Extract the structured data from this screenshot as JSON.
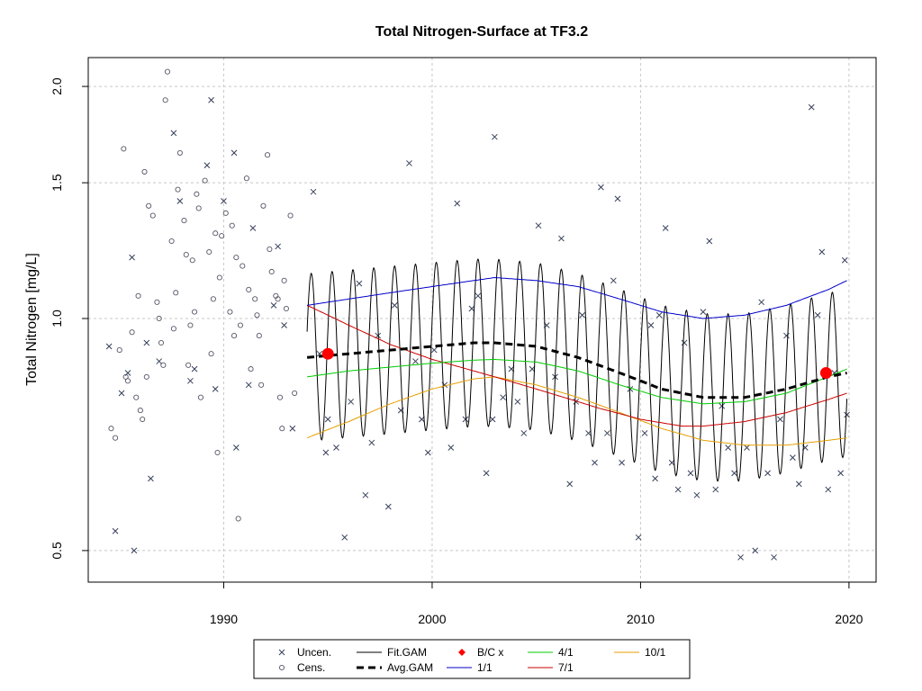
{
  "chart_data": {
    "type": "scatter",
    "title": "Total Nitrogen-Surface at TF3.2",
    "xlabel": "",
    "ylabel": "Total Nitrogen [mg/L]",
    "y_scale": "log",
    "xlim": [
      1983.5,
      2021.3
    ],
    "ylim": [
      0.455,
      2.18
    ],
    "x_ticks": [
      1990,
      2000,
      2010,
      2020
    ],
    "x_tick_labels": [
      "1990",
      "2000",
      "2010",
      "2020"
    ],
    "y_ticks": [
      0.5,
      1.0,
      1.5,
      2.0
    ],
    "y_tick_labels": [
      "0.5",
      "1.0",
      "1.5",
      "2.0"
    ],
    "grid": true,
    "legend_position": "bottom-center",
    "colors": {
      "uncen": "#36405a",
      "cens": "#555566",
      "fit_gam": "#000000",
      "avg_gam": "#000000",
      "bc": "#ff0000",
      "one_one": "#0000cc",
      "four_one": "#00cc00",
      "seven_one": "#cc0000",
      "ten_one": "#e69f00"
    },
    "legend": [
      {
        "label": "Uncen.",
        "symbol": "x"
      },
      {
        "label": "Fit.GAM",
        "symbol": "line"
      },
      {
        "label": "B/C x",
        "symbol": "diamond"
      },
      {
        "label": "4/1",
        "symbol": "line"
      },
      {
        "label": "10/1",
        "symbol": "line"
      },
      {
        "label": "Cens.",
        "symbol": "circle"
      },
      {
        "label": "Avg.GAM",
        "symbol": "dashed"
      },
      {
        "label": "1/1",
        "symbol": "line"
      },
      {
        "label": "7/1",
        "symbol": "line"
      }
    ],
    "censored_points": [
      [
        1984.6,
        0.72
      ],
      [
        1984.8,
        0.7
      ],
      [
        1985.0,
        0.91
      ],
      [
        1985.2,
        1.66
      ],
      [
        1985.4,
        0.83
      ],
      [
        1985.6,
        0.96
      ],
      [
        1985.8,
        0.79
      ],
      [
        1986.0,
        0.76
      ],
      [
        1986.2,
        1.55
      ],
      [
        1986.4,
        1.4
      ],
      [
        1986.6,
        1.36
      ],
      [
        1986.8,
        1.05
      ],
      [
        1987.0,
        0.93
      ],
      [
        1987.2,
        1.92
      ],
      [
        1987.3,
        2.09
      ],
      [
        1987.5,
        1.26
      ],
      [
        1987.7,
        1.08
      ],
      [
        1987.9,
        1.64
      ],
      [
        1988.1,
        1.34
      ],
      [
        1988.3,
        0.87
      ],
      [
        1988.5,
        1.19
      ],
      [
        1988.7,
        1.45
      ],
      [
        1988.9,
        0.79
      ],
      [
        1989.1,
        1.51
      ],
      [
        1989.3,
        1.22
      ],
      [
        1989.5,
        1.06
      ],
      [
        1989.7,
        0.67
      ],
      [
        1989.9,
        1.28
      ],
      [
        1990.1,
        1.37
      ],
      [
        1990.3,
        1.02
      ],
      [
        1990.5,
        0.95
      ],
      [
        1990.7,
        0.55
      ],
      [
        1990.9,
        1.17
      ],
      [
        1991.1,
        1.52
      ],
      [
        1991.3,
        0.86
      ],
      [
        1991.5,
        1.06
      ],
      [
        1991.7,
        0.95
      ],
      [
        1991.9,
        1.4
      ],
      [
        1992.1,
        1.63
      ],
      [
        1992.3,
        1.15
      ],
      [
        1992.5,
        1.07
      ],
      [
        1992.7,
        0.79
      ],
      [
        1992.9,
        1.12
      ],
      [
        1993.2,
        1.36
      ],
      [
        1993.4,
        0.8
      ],
      [
        1985.9,
        1.07
      ],
      [
        1986.3,
        0.84
      ],
      [
        1986.9,
        1.0
      ],
      [
        1987.6,
        0.97
      ],
      [
        1988.2,
        1.21
      ],
      [
        1988.8,
        1.39
      ],
      [
        1989.6,
        1.29
      ],
      [
        1990.6,
        1.2
      ],
      [
        1991.6,
        1.01
      ],
      [
        1992.6,
        1.06
      ],
      [
        1987.1,
        0.87
      ],
      [
        1988.4,
        0.98
      ],
      [
        1989.4,
        0.9
      ],
      [
        1990.8,
        0.98
      ],
      [
        1991.8,
        0.82
      ],
      [
        1992.8,
        0.72
      ],
      [
        1985.3,
        0.84
      ],
      [
        1986.1,
        0.74
      ],
      [
        1987.8,
        1.47
      ],
      [
        1988.6,
        1.02
      ],
      [
        1989.8,
        1.13
      ],
      [
        1990.4,
        1.32
      ],
      [
        1991.2,
        1.09
      ],
      [
        1992.2,
        1.23
      ],
      [
        1993.0,
        1.03
      ]
    ],
    "uncensored_points": [
      [
        1984.5,
        0.92
      ],
      [
        1984.8,
        0.53
      ],
      [
        1985.1,
        0.8
      ],
      [
        1985.4,
        0.85
      ],
      [
        1985.6,
        1.2
      ],
      [
        1985.7,
        0.5
      ],
      [
        1986.3,
        0.93
      ],
      [
        1986.5,
        0.62
      ],
      [
        1986.9,
        0.88
      ],
      [
        1987.6,
        1.74
      ],
      [
        1987.9,
        1.42
      ],
      [
        1988.4,
        0.83
      ],
      [
        1988.6,
        0.86
      ],
      [
        1989.2,
        1.58
      ],
      [
        1989.4,
        1.92
      ],
      [
        1989.6,
        0.81
      ],
      [
        1990.0,
        1.42
      ],
      [
        1990.5,
        1.64
      ],
      [
        1990.6,
        0.68
      ],
      [
        1991.2,
        0.82
      ],
      [
        1991.4,
        1.31
      ],
      [
        1992.4,
        1.04
      ],
      [
        1992.6,
        1.24
      ],
      [
        1992.9,
        0.98
      ],
      [
        1993.3,
        0.72
      ],
      [
        1994.3,
        1.46
      ],
      [
        1994.6,
        0.9
      ],
      [
        1994.9,
        0.67
      ],
      [
        1995.0,
        0.74
      ],
      [
        1995.4,
        0.68
      ],
      [
        1995.8,
        0.52
      ],
      [
        1996.1,
        0.78
      ],
      [
        1996.5,
        1.11
      ],
      [
        1996.8,
        0.59
      ],
      [
        1997.1,
        0.69
      ],
      [
        1997.4,
        0.95
      ],
      [
        1997.9,
        0.57
      ],
      [
        1998.2,
        1.04
      ],
      [
        1998.5,
        0.76
      ],
      [
        1998.9,
        1.59
      ],
      [
        1999.2,
        0.88
      ],
      [
        1999.5,
        0.74
      ],
      [
        1999.8,
        0.67
      ],
      [
        2000.1,
        0.91
      ],
      [
        2000.6,
        0.82
      ],
      [
        2000.9,
        0.68
      ],
      [
        2001.2,
        1.41
      ],
      [
        2001.6,
        0.74
      ],
      [
        2001.9,
        1.03
      ],
      [
        2002.2,
        1.07
      ],
      [
        2002.6,
        0.63
      ],
      [
        2002.9,
        0.74
      ],
      [
        2003.0,
        1.72
      ],
      [
        2003.4,
        0.79
      ],
      [
        2003.8,
        0.86
      ],
      [
        2004.1,
        0.78
      ],
      [
        2004.4,
        0.71
      ],
      [
        2004.8,
        0.86
      ],
      [
        2005.1,
        1.32
      ],
      [
        2005.5,
        0.98
      ],
      [
        2005.9,
        0.84
      ],
      [
        2006.2,
        1.27
      ],
      [
        2006.6,
        0.61
      ],
      [
        2006.9,
        0.78
      ],
      [
        2007.2,
        1.01
      ],
      [
        2007.5,
        0.71
      ],
      [
        2007.8,
        0.65
      ],
      [
        2008.1,
        1.48
      ],
      [
        2008.4,
        0.71
      ],
      [
        2008.7,
        1.12
      ],
      [
        2008.9,
        1.43
      ],
      [
        2009.1,
        0.65
      ],
      [
        2009.5,
        0.81
      ],
      [
        2009.9,
        0.52
      ],
      [
        2010.2,
        0.71
      ],
      [
        2010.5,
        0.98
      ],
      [
        2010.7,
        0.62
      ],
      [
        2010.9,
        1.01
      ],
      [
        2011.2,
        1.31
      ],
      [
        2011.5,
        0.65
      ],
      [
        2011.8,
        0.6
      ],
      [
        2012.1,
        0.93
      ],
      [
        2012.4,
        0.63
      ],
      [
        2012.7,
        0.59
      ],
      [
        2013.0,
        1.02
      ],
      [
        2013.3,
        1.26
      ],
      [
        2013.6,
        0.6
      ],
      [
        2013.9,
        0.77
      ],
      [
        2014.2,
        0.68
      ],
      [
        2014.5,
        0.63
      ],
      [
        2014.8,
        0.49
      ],
      [
        2015.1,
        0.68
      ],
      [
        2015.5,
        0.5
      ],
      [
        2015.8,
        1.05
      ],
      [
        2016.1,
        0.63
      ],
      [
        2016.4,
        0.49
      ],
      [
        2016.7,
        0.74
      ],
      [
        2017.0,
        0.95
      ],
      [
        2017.3,
        0.66
      ],
      [
        2017.6,
        0.61
      ],
      [
        2017.9,
        0.68
      ],
      [
        2018.2,
        1.88
      ],
      [
        2018.5,
        1.01
      ],
      [
        2018.7,
        1.22
      ],
      [
        2019.0,
        0.6
      ],
      [
        2019.3,
        0.85
      ],
      [
        2019.6,
        0.63
      ],
      [
        2019.8,
        1.19
      ],
      [
        2019.9,
        0.75
      ]
    ],
    "bc_points": [
      [
        1995.0,
        0.9
      ],
      [
        2018.9,
        0.85
      ]
    ],
    "series": [
      {
        "name": "Fit.GAM",
        "x_range": [
          1994.0,
          2019.9
        ],
        "amplitude": 0.25,
        "phase": 0.95
      },
      {
        "name": "Avg.GAM",
        "points": [
          [
            1994.0,
            0.89
          ],
          [
            1996.0,
            0.9
          ],
          [
            1998.0,
            0.91
          ],
          [
            2000.0,
            0.92
          ],
          [
            2002.0,
            0.93
          ],
          [
            2003.0,
            0.93
          ],
          [
            2005.0,
            0.92
          ],
          [
            2007.0,
            0.89
          ],
          [
            2009.0,
            0.85
          ],
          [
            2011.0,
            0.81
          ],
          [
            2013.0,
            0.79
          ],
          [
            2015.0,
            0.79
          ],
          [
            2017.0,
            0.81
          ],
          [
            2019.0,
            0.84
          ],
          [
            2019.9,
            0.85
          ]
        ]
      },
      {
        "name": "1/1",
        "points": [
          [
            1994.0,
            1.04
          ],
          [
            1996.0,
            1.06
          ],
          [
            1998.0,
            1.08
          ],
          [
            2000.0,
            1.1
          ],
          [
            2002.0,
            1.12
          ],
          [
            2003.0,
            1.13
          ],
          [
            2005.0,
            1.12
          ],
          [
            2007.0,
            1.1
          ],
          [
            2009.0,
            1.06
          ],
          [
            2011.0,
            1.02
          ],
          [
            2013.0,
            1.0
          ],
          [
            2015.0,
            1.01
          ],
          [
            2017.0,
            1.04
          ],
          [
            2019.0,
            1.09
          ],
          [
            2019.9,
            1.12
          ]
        ]
      },
      {
        "name": "4/1",
        "points": [
          [
            1994.0,
            0.84
          ],
          [
            1996.0,
            0.855
          ],
          [
            1998.0,
            0.865
          ],
          [
            2000.0,
            0.875
          ],
          [
            2002.0,
            0.883
          ],
          [
            2003.0,
            0.885
          ],
          [
            2005.0,
            0.878
          ],
          [
            2007.0,
            0.855
          ],
          [
            2009.0,
            0.82
          ],
          [
            2011.0,
            0.79
          ],
          [
            2013.0,
            0.775
          ],
          [
            2015.0,
            0.78
          ],
          [
            2017.0,
            0.8
          ],
          [
            2019.0,
            0.84
          ],
          [
            2019.9,
            0.86
          ]
        ]
      },
      {
        "name": "7/1",
        "points": [
          [
            1994.0,
            1.04
          ],
          [
            1996.0,
            0.98
          ],
          [
            1998.0,
            0.925
          ],
          [
            2000.0,
            0.885
          ],
          [
            2002.0,
            0.855
          ],
          [
            2004.0,
            0.825
          ],
          [
            2006.0,
            0.795
          ],
          [
            2008.0,
            0.765
          ],
          [
            2010.0,
            0.74
          ],
          [
            2012.0,
            0.725
          ],
          [
            2013.0,
            0.725
          ],
          [
            2015.0,
            0.735
          ],
          [
            2017.0,
            0.755
          ],
          [
            2019.0,
            0.785
          ],
          [
            2019.9,
            0.8
          ]
        ]
      },
      {
        "name": "10/1",
        "points": [
          [
            1994.0,
            0.7
          ],
          [
            1996.0,
            0.735
          ],
          [
            1998.0,
            0.775
          ],
          [
            2000.0,
            0.81
          ],
          [
            2002.0,
            0.835
          ],
          [
            2003.0,
            0.84
          ],
          [
            2005.0,
            0.82
          ],
          [
            2007.0,
            0.79
          ],
          [
            2009.0,
            0.755
          ],
          [
            2011.0,
            0.72
          ],
          [
            2013.0,
            0.695
          ],
          [
            2015.0,
            0.685
          ],
          [
            2017.0,
            0.685
          ],
          [
            2019.0,
            0.695
          ],
          [
            2019.9,
            0.7
          ]
        ]
      }
    ]
  }
}
